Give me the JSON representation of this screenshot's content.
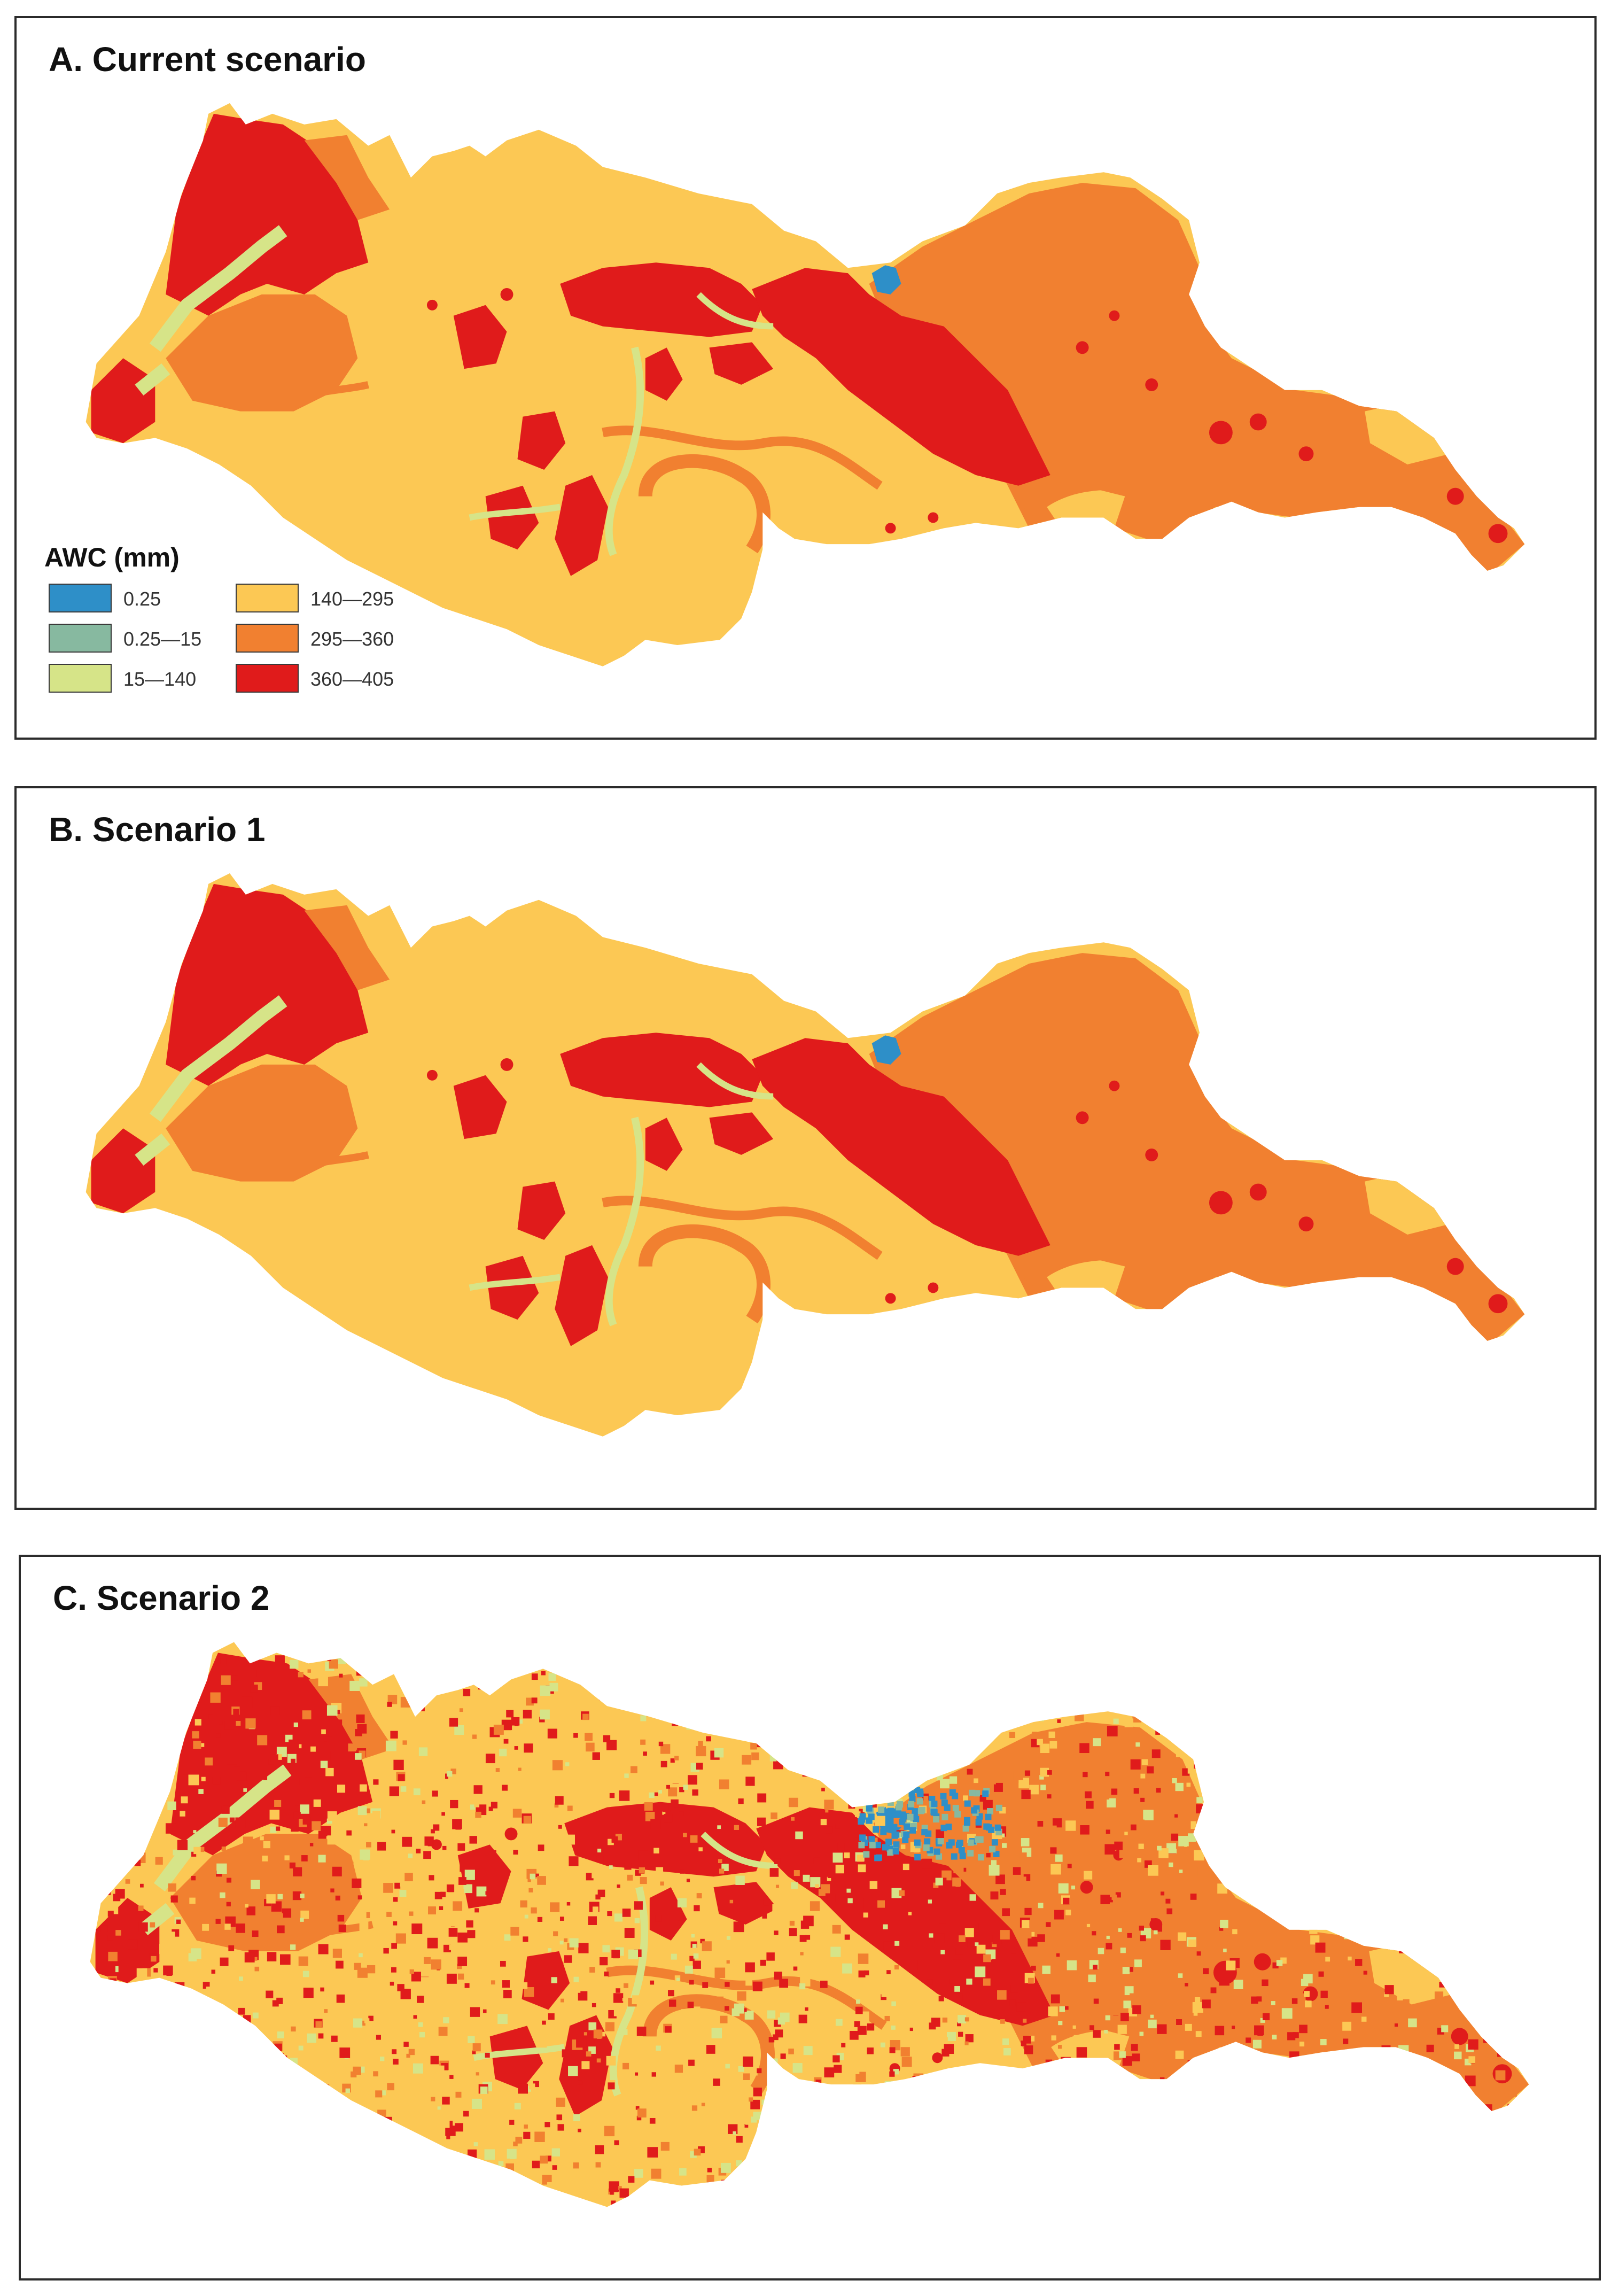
{
  "panels": [
    {
      "title": "A. Current scenario"
    },
    {
      "title": "B. Scenario 1"
    },
    {
      "title": "C. Scenario 2"
    }
  ],
  "legend": {
    "title": "AWC (mm)",
    "items": [
      {
        "label": "0.25",
        "color": "#2e8fc8"
      },
      {
        "label": "0.25—15",
        "color": "#87b9a0"
      },
      {
        "label": "15—140",
        "color": "#d6e488"
      },
      {
        "label": "140—295",
        "color": "#fcc854"
      },
      {
        "label": "295—360",
        "color": "#f18030"
      },
      {
        "label": "360—405",
        "color": "#e01b1b"
      }
    ]
  },
  "colors": {
    "blue": "#2e8fc8",
    "teal": "#87b9a0",
    "light_green": "#d6e488",
    "yellow": "#fcc854",
    "orange": "#f18030",
    "red": "#e01b1b",
    "frame": "#2b2b2b"
  }
}
